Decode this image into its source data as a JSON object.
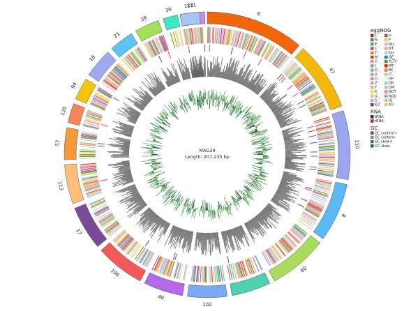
{
  "center": {
    "name": "MAG39",
    "length": "Length: 207,235 bp"
  },
  "contigs": [
    {
      "label": "111",
      "color": "#c98af2"
    },
    {
      "label": "6",
      "color": "#f2660b"
    },
    {
      "label": "47",
      "color": "#f7b80c"
    },
    {
      "label": "110",
      "color": "#9aa6ee"
    },
    {
      "label": "8",
      "color": "#5bb8f0"
    },
    {
      "label": "80",
      "color": "#a7dc5c"
    },
    {
      "label": "102",
      "color": "#78aaf2"
    },
    {
      "label": "49",
      "color": "#b36ae8"
    },
    {
      "label": "106",
      "color": "#f25a5a"
    },
    {
      "label": "17",
      "color": "#7a4a9a"
    },
    {
      "label": "113",
      "color": "#ffbe7a"
    },
    {
      "label": "57",
      "color": "#f59a3c"
    },
    {
      "label": "120",
      "color": "#f7845a"
    },
    {
      "label": "94",
      "color": "#f5c30a"
    },
    {
      "label": "18",
      "color": "#a0a8f0"
    },
    {
      "label": "21",
      "color": "#5ec3f2"
    },
    {
      "label": "38",
      "color": "#a3e05a"
    },
    {
      "label": "36",
      "color": "#3ee8c0"
    },
    {
      "label": "107",
      "color": "#a8c4f0"
    }
  ],
  "legend": {
    "eggnog_title": "eggNOG",
    "eggnog_left": [
      {
        "label": "C",
        "color": "#e41a1c"
      },
      {
        "label": "N",
        "color": "#377eb8"
      },
      {
        "label": "E",
        "color": "#4daf4a"
      },
      {
        "label": "L",
        "color": "#984ea3"
      },
      {
        "label": "T",
        "color": "#ff7f00"
      },
      {
        "label": "M",
        "color": "#a65628"
      },
      {
        "label": "G",
        "color": "#f781bf"
      },
      {
        "label": "I",
        "color": "#999999"
      },
      {
        "label": "Q",
        "color": "#66c2a5"
      },
      {
        "label": "V",
        "color": "#fc8d62"
      },
      {
        "label": "O",
        "color": "#8da0cb"
      },
      {
        "label": "Z",
        "color": "#e78ac3"
      },
      {
        "label": "F",
        "color": "#a6d854"
      },
      {
        "label": "K",
        "color": "#ffd92f"
      },
      {
        "label": "U",
        "color": "#e5c494"
      },
      {
        "label": "S",
        "color": "#b3b3b3"
      },
      {
        "label": "KLT",
        "color": "#6a3d9a"
      }
    ],
    "eggnog_right": [
      {
        "label": "H",
        "color": "#b15928"
      },
      {
        "label": "P",
        "color": "#fdbf6f"
      },
      {
        "label": "NU",
        "color": "#cab2d6"
      },
      {
        "label": "NT",
        "color": "#fb9a99"
      },
      {
        "label": "KH",
        "color": "#b2df8a"
      },
      {
        "label": "QE",
        "color": "#1f78b4"
      },
      {
        "label": "KLTV",
        "color": "#33a02c"
      },
      {
        "label": "MT",
        "color": "#e31a1c"
      },
      {
        "label": "EK",
        "color": "#ff7f00"
      },
      {
        "label": "IT",
        "color": "#a6cee3"
      },
      {
        "label": "HP",
        "color": "#ffff99"
      },
      {
        "label": "DK",
        "color": "#8dd3c7"
      },
      {
        "label": "DM",
        "color": "#bebada"
      },
      {
        "label": "NOT",
        "color": "#fb8072"
      },
      {
        "label": "NQU",
        "color": "#80b1d3"
      },
      {
        "label": "IQ",
        "color": "#fdb462"
      },
      {
        "label": "KU",
        "color": "#b3de69"
      }
    ],
    "rna_title": "RNA",
    "rna": [
      {
        "label": "tRNA",
        "color": "#1a1aa8"
      },
      {
        "label": "rRNA",
        "color": "#e0162b"
      }
    ],
    "gc_title": "GC",
    "gc": [
      {
        "label": "GC content+",
        "color": "#555555"
      },
      {
        "label": "GC content-",
        "color": "#888888"
      },
      {
        "label": "GC skew+",
        "color": "#2e8b3a"
      },
      {
        "label": "GC skew-",
        "color": "#1e6b2a"
      }
    ]
  }
}
